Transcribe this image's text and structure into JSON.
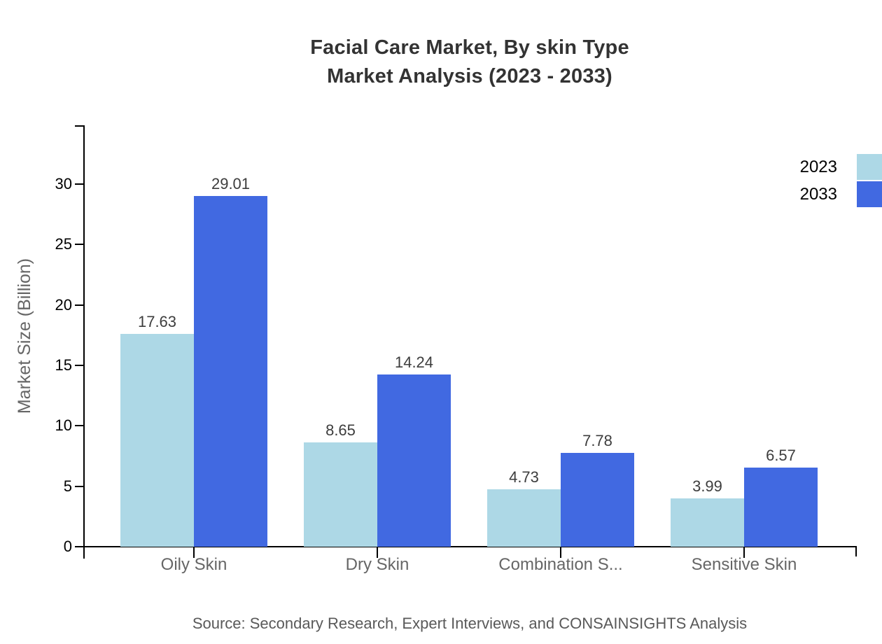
{
  "chart_data": {
    "type": "bar",
    "title": "Facial Care Market, By skin Type",
    "subtitle": "Market Analysis (2023 - 2033)",
    "categories": [
      "Oily Skin",
      "Dry Skin",
      "Combination S...",
      "Sensitive Skin"
    ],
    "series": [
      {
        "name": "2023",
        "color": "#ADD8E6",
        "values": [
          17.63,
          8.65,
          4.73,
          3.99
        ]
      },
      {
        "name": "2033",
        "color": "#4169E1",
        "values": [
          29.01,
          14.24,
          7.78,
          6.57
        ]
      }
    ],
    "xlabel": "",
    "ylabel": "Market Size (Billion)",
    "ylim": [
      0,
      34.8
    ],
    "yticks": [
      0,
      5,
      10,
      15,
      20,
      25,
      30
    ],
    "grid": false,
    "legend_position": "top-right",
    "value_labels": true
  },
  "source_note": "Source: Secondary Research, Expert Interviews, and CONSAINSIGHTS Analysis"
}
